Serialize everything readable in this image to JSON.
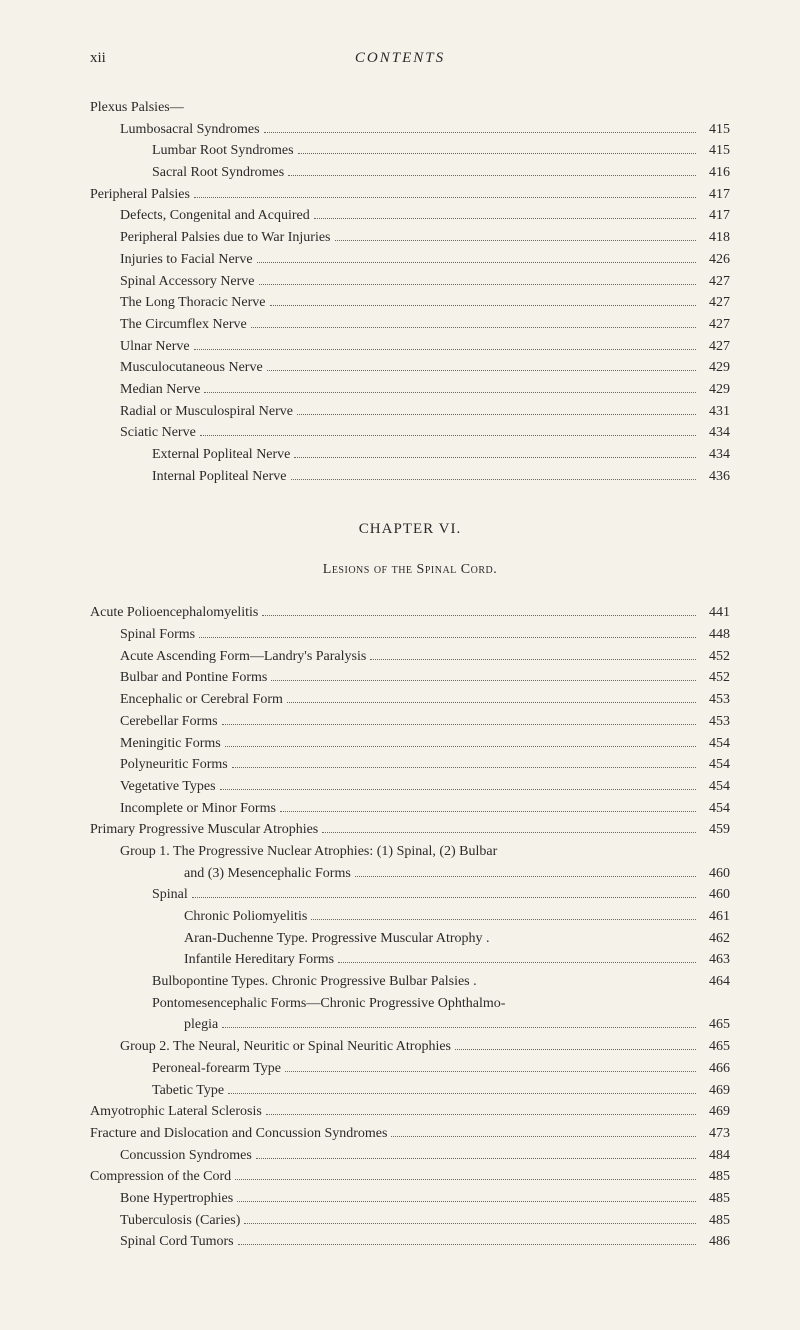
{
  "colors": {
    "background": "#f5f2ea",
    "text": "#2a2a2a",
    "dots": "#666666"
  },
  "typography": {
    "body_font_size": 14,
    "header_font_size": 15,
    "line_height": 1.55,
    "font_family": "Georgia, Times New Roman, serif"
  },
  "page_number": "xii",
  "running_title": "CONTENTS",
  "section1_header": "Plexus Palsies—",
  "section1": [
    {
      "indent": 1,
      "label": "Lumbosacral Syndromes",
      "page": "415"
    },
    {
      "indent": 2,
      "label": "Lumbar Root Syndromes",
      "page": "415"
    },
    {
      "indent": 2,
      "label": "Sacral Root Syndromes",
      "page": "416"
    },
    {
      "indent": 0,
      "label": "Peripheral Palsies",
      "page": "417"
    },
    {
      "indent": 1,
      "label": "Defects, Congenital and Acquired",
      "page": "417"
    },
    {
      "indent": 1,
      "label": "Peripheral Palsies due to War Injuries",
      "page": "418"
    },
    {
      "indent": 1,
      "label": "Injuries to Facial Nerve",
      "page": "426"
    },
    {
      "indent": 1,
      "label": "Spinal Accessory Nerve",
      "page": "427"
    },
    {
      "indent": 1,
      "label": "The Long Thoracic Nerve",
      "page": "427"
    },
    {
      "indent": 1,
      "label": "The Circumflex Nerve",
      "page": "427"
    },
    {
      "indent": 1,
      "label": "Ulnar Nerve",
      "page": "427"
    },
    {
      "indent": 1,
      "label": "Musculocutaneous Nerve",
      "page": "429"
    },
    {
      "indent": 1,
      "label": "Median Nerve",
      "page": "429"
    },
    {
      "indent": 1,
      "label": "Radial or Musculospiral Nerve",
      "page": "431"
    },
    {
      "indent": 1,
      "label": "Sciatic Nerve",
      "page": "434"
    },
    {
      "indent": 2,
      "label": "External Popliteal Nerve",
      "page": "434"
    },
    {
      "indent": 2,
      "label": "Internal Popliteal Nerve",
      "page": "436"
    }
  ],
  "chapter_heading": "CHAPTER VI.",
  "chapter_subtitle": "Lesions of the Spinal Cord.",
  "section2": [
    {
      "indent": 0,
      "label": "Acute Polioencephalomyelitis",
      "page": "441"
    },
    {
      "indent": 1,
      "label": "Spinal Forms",
      "page": "448"
    },
    {
      "indent": 1,
      "label": "Acute Ascending Form—Landry's Paralysis",
      "page": "452"
    },
    {
      "indent": 1,
      "label": "Bulbar and Pontine Forms",
      "page": "452"
    },
    {
      "indent": 1,
      "label": "Encephalic or Cerebral Form",
      "page": "453"
    },
    {
      "indent": 1,
      "label": "Cerebellar Forms",
      "page": "453"
    },
    {
      "indent": 1,
      "label": "Meningitic Forms",
      "page": "454"
    },
    {
      "indent": 1,
      "label": "Polyneuritic Forms",
      "page": "454"
    },
    {
      "indent": 1,
      "label": "Vegetative Types",
      "page": "454"
    },
    {
      "indent": 1,
      "label": "Incomplete or Minor Forms",
      "page": "454"
    },
    {
      "indent": 0,
      "label": "Primary Progressive Muscular Atrophies",
      "page": "459"
    },
    {
      "indent": 1,
      "label": "Group 1. The Progressive Nuclear Atrophies: (1) Spinal, (2) Bulbar",
      "page": "",
      "no_page": true
    },
    {
      "indent": 3,
      "label": "and (3) Mesencephalic Forms",
      "page": "460"
    },
    {
      "indent": 2,
      "label": "Spinal",
      "page": "460"
    },
    {
      "indent": 3,
      "label": "Chronic Poliomyelitis",
      "page": "461"
    },
    {
      "indent": 3,
      "label": "Aran-Duchenne Type.  Progressive Muscular Atrophy .",
      "page": "462",
      "no_dots": true
    },
    {
      "indent": 3,
      "label": "Infantile Hereditary Forms",
      "page": "463"
    },
    {
      "indent": 2,
      "label": "Bulbopontine Types.  Chronic Progressive Bulbar Palsies  .",
      "page": "464",
      "no_dots": true
    },
    {
      "indent": 2,
      "label": "Pontomesencephalic Forms—Chronic Progressive Ophthalmo-",
      "page": "",
      "no_page": true
    },
    {
      "indent": 3,
      "label": "plegia",
      "page": "465"
    },
    {
      "indent": 1,
      "label": "Group 2. The Neural, Neuritic or Spinal Neuritic Atrophies",
      "page": "465"
    },
    {
      "indent": 2,
      "label": "Peroneal-forearm Type",
      "page": "466"
    },
    {
      "indent": 2,
      "label": "Tabetic Type",
      "page": "469"
    },
    {
      "indent": 0,
      "label": "Amyotrophic Lateral Sclerosis",
      "page": "469"
    },
    {
      "indent": 0,
      "label": "Fracture and Dislocation and Concussion Syndromes",
      "page": "473"
    },
    {
      "indent": 1,
      "label": "Concussion Syndromes",
      "page": "484"
    },
    {
      "indent": 0,
      "label": "Compression of the Cord",
      "page": "485"
    },
    {
      "indent": 1,
      "label": "Bone Hypertrophies",
      "page": "485"
    },
    {
      "indent": 1,
      "label": "Tuberculosis (Caries)",
      "page": "485"
    },
    {
      "indent": 1,
      "label": "Spinal Cord Tumors",
      "page": "486"
    }
  ]
}
